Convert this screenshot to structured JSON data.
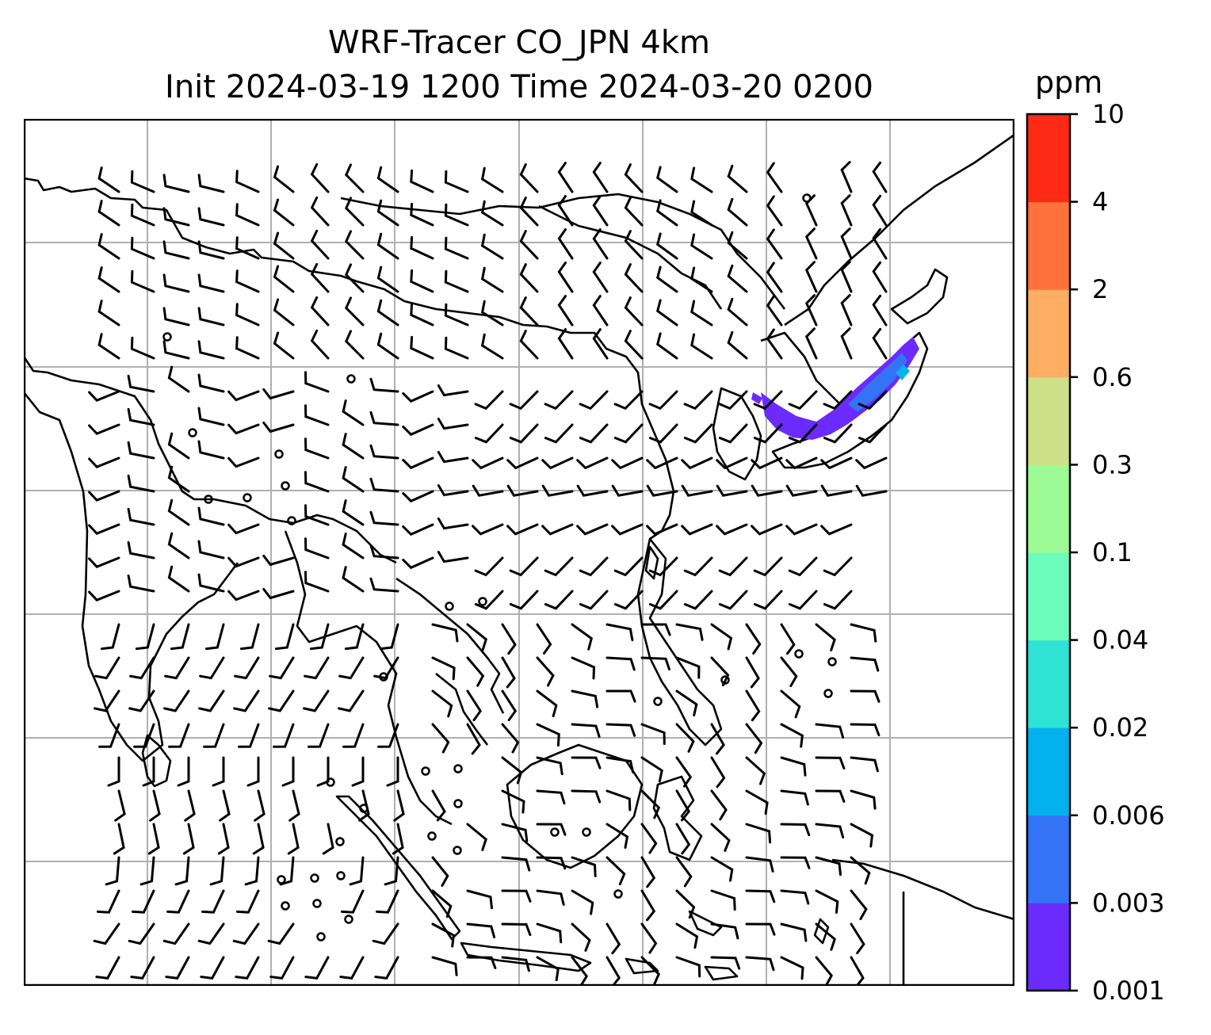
{
  "title": {
    "line1": "WRF-Tracer CO_JPN 4km",
    "line2": "Init 2024-03-19 1200 Time 2024-03-20 0200"
  },
  "colorbar": {
    "unit": "ppm",
    "levels": [
      "0.001",
      "0.003",
      "0.006",
      "0.02",
      "0.04",
      "0.1",
      "0.3",
      "0.6",
      "2",
      "4",
      "10"
    ],
    "colors": [
      "#6a2bfc",
      "#3473f6",
      "#02b1ee",
      "#2ee2d4",
      "#6bfcbc",
      "#9cfb94",
      "#cde087",
      "#fdae62",
      "#fe713b",
      "#fe2a16"
    ]
  },
  "map": {
    "grid": true,
    "plume_colors": [
      "#6a2bfc",
      "#3473f6",
      "#02b1ee"
    ]
  }
}
